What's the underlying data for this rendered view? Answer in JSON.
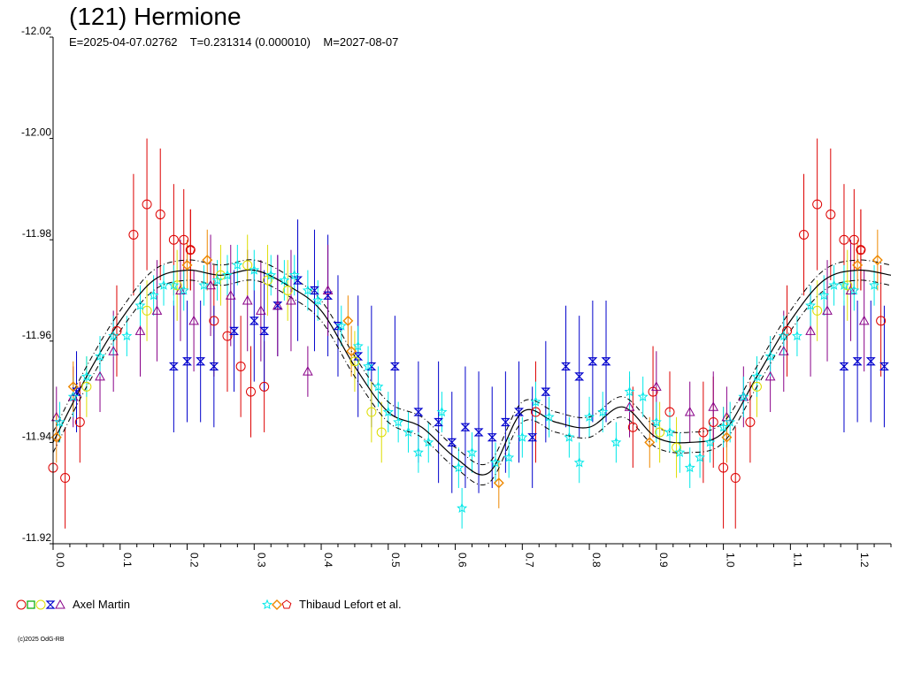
{
  "chart_data": {
    "type": "scatter",
    "title": "(121) Hermione",
    "subtitle": "E=2025-04-07.02762    T=0.231314 (0.000010)    M=2027-08-07",
    "xlabel": "",
    "ylabel": "",
    "xlim": [
      0.0,
      1.25
    ],
    "ylim": [
      -12.02,
      -11.92
    ],
    "y_inverted": true,
    "y_ticks": [
      "-12.02",
      "-12.00",
      "-11.98",
      "-11.96",
      "-11.94",
      "-11.92"
    ],
    "y_tick_values": [
      -12.02,
      -12.0,
      -11.98,
      -11.96,
      -11.94,
      -11.92
    ],
    "x_ticks": [
      "0.0",
      "0.1",
      "0.2",
      "0.3",
      "0.4",
      "0.5",
      "0.6",
      "0.7",
      "0.8",
      "0.9",
      "1.0",
      "1.1",
      "1.2"
    ],
    "x_tick_values": [
      0.0,
      0.1,
      0.2,
      0.3,
      0.4,
      0.5,
      0.6,
      0.7,
      0.8,
      0.9,
      1.0,
      1.1,
      1.2
    ],
    "grid": false,
    "legend_placement": "bottom",
    "fit_curve": {
      "phase": [
        0.0,
        0.05,
        0.1,
        0.15,
        0.2,
        0.25,
        0.3,
        0.35,
        0.4,
        0.45,
        0.5,
        0.55,
        0.6,
        0.65,
        0.7,
        0.75,
        0.8,
        0.85,
        0.9,
        0.95,
        1.0,
        1.05,
        1.1,
        1.15,
        1.2,
        1.25
      ],
      "mag": [
        -11.94,
        -11.953,
        -11.964,
        -11.972,
        -11.974,
        -11.973,
        -11.974,
        -11.971,
        -11.966,
        -11.955,
        -11.946,
        -11.943,
        -11.937,
        -11.934,
        -11.946,
        -11.944,
        -11.943,
        -11.947,
        -11.941,
        -11.94,
        -11.942,
        -11.953,
        -11.964,
        -11.972,
        -11.974,
        -11.973
      ],
      "envelope_offset": 0.002
    },
    "series": [
      {
        "name": "Axel Martin",
        "color": "#dd0000",
        "marker": "circle",
        "points": [
          [
            0.0,
            -11.935,
            0.012
          ],
          [
            0.018,
            -11.933,
            0.01
          ],
          [
            0.04,
            -11.944,
            0.008
          ],
          [
            0.095,
            -11.962,
            0.009
          ],
          [
            0.12,
            -11.981,
            0.012
          ],
          [
            0.14,
            -11.987,
            0.013
          ],
          [
            0.16,
            -11.985,
            0.013
          ],
          [
            0.18,
            -11.98,
            0.011
          ],
          [
            0.195,
            -11.98,
            0.01
          ],
          [
            0.205,
            -11.978,
            0.008
          ],
          [
            0.24,
            -11.964,
            0.011
          ],
          [
            0.26,
            -11.961,
            0.011
          ],
          [
            0.28,
            -11.955,
            0.01
          ],
          [
            0.295,
            -11.95,
            0.009
          ],
          [
            0.315,
            -11.951,
            0.009
          ],
          [
            0.72,
            -11.946,
            0.01
          ],
          [
            0.865,
            -11.943,
            0.008
          ],
          [
            0.895,
            -11.95,
            0.009
          ],
          [
            0.92,
            -11.946,
            0.008
          ],
          [
            0.97,
            -11.942,
            0.01
          ],
          [
            0.985,
            -11.944,
            0.009
          ],
          [
            1.0,
            -11.935,
            0.012
          ],
          [
            1.018,
            -11.933,
            0.01
          ],
          [
            1.04,
            -11.944,
            0.008
          ],
          [
            1.095,
            -11.962,
            0.009
          ],
          [
            1.12,
            -11.981,
            0.012
          ],
          [
            1.14,
            -11.987,
            0.013
          ],
          [
            1.16,
            -11.985,
            0.013
          ],
          [
            1.18,
            -11.98,
            0.011
          ],
          [
            1.195,
            -11.98,
            0.01
          ],
          [
            1.205,
            -11.978,
            0.008
          ],
          [
            1.235,
            -11.964,
            0.011
          ]
        ]
      },
      {
        "name": "Axel Martin",
        "color": "#0000cc",
        "marker": "hourglass",
        "points": [
          [
            0.035,
            -11.95,
            0.008
          ],
          [
            0.18,
            -11.955,
            0.013
          ],
          [
            0.2,
            -11.956,
            0.012
          ],
          [
            0.22,
            -11.956,
            0.012
          ],
          [
            0.24,
            -11.955,
            0.012
          ],
          [
            0.27,
            -11.962,
            0.012
          ],
          [
            0.3,
            -11.964,
            0.012
          ],
          [
            0.315,
            -11.962,
            0.012
          ],
          [
            0.335,
            -11.967,
            0.01
          ],
          [
            0.365,
            -11.972,
            0.012
          ],
          [
            0.39,
            -11.97,
            0.012
          ],
          [
            0.41,
            -11.969,
            0.012
          ],
          [
            0.425,
            -11.963,
            0.01
          ],
          [
            0.455,
            -11.957,
            0.012
          ],
          [
            0.475,
            -11.955,
            0.012
          ],
          [
            0.51,
            -11.955,
            0.01
          ],
          [
            0.545,
            -11.946,
            0.01
          ],
          [
            0.575,
            -11.944,
            0.012
          ],
          [
            0.595,
            -11.94,
            0.01
          ],
          [
            0.615,
            -11.943,
            0.012
          ],
          [
            0.635,
            -11.942,
            0.012
          ],
          [
            0.655,
            -11.941,
            0.01
          ],
          [
            0.675,
            -11.944,
            0.01
          ],
          [
            0.695,
            -11.946,
            0.01
          ],
          [
            0.715,
            -11.941,
            0.01
          ],
          [
            0.735,
            -11.95,
            0.01
          ],
          [
            0.765,
            -11.955,
            0.012
          ],
          [
            0.785,
            -11.953,
            0.012
          ],
          [
            0.805,
            -11.956,
            0.012
          ],
          [
            0.825,
            -11.956,
            0.012
          ],
          [
            1.18,
            -11.955,
            0.013
          ],
          [
            1.2,
            -11.956,
            0.012
          ],
          [
            1.22,
            -11.956,
            0.012
          ],
          [
            1.24,
            -11.955,
            0.012
          ]
        ]
      },
      {
        "name": "Axel Martin",
        "color": "#880088",
        "marker": "triangle",
        "points": [
          [
            0.005,
            -11.945,
            0.006
          ],
          [
            0.03,
            -11.949,
            0.006
          ],
          [
            0.07,
            -11.953,
            0.007
          ],
          [
            0.09,
            -11.958,
            0.008
          ],
          [
            0.13,
            -11.962,
            0.009
          ],
          [
            0.155,
            -11.966,
            0.01
          ],
          [
            0.19,
            -11.97,
            0.01
          ],
          [
            0.21,
            -11.964,
            0.01
          ],
          [
            0.235,
            -11.971,
            0.01
          ],
          [
            0.265,
            -11.969,
            0.01
          ],
          [
            0.29,
            -11.968,
            0.01
          ],
          [
            0.31,
            -11.966,
            0.01
          ],
          [
            0.335,
            -11.967,
            0.01
          ],
          [
            0.355,
            -11.968,
            0.01
          ],
          [
            0.38,
            -11.954,
            0.005
          ],
          [
            0.41,
            -11.97,
            0.009
          ],
          [
            0.86,
            -11.947,
            0.006
          ],
          [
            0.9,
            -11.951,
            0.007
          ],
          [
            0.95,
            -11.946,
            0.006
          ],
          [
            0.985,
            -11.947,
            0.007
          ],
          [
            1.005,
            -11.945,
            0.006
          ],
          [
            1.03,
            -11.949,
            0.006
          ],
          [
            1.07,
            -11.953,
            0.007
          ],
          [
            1.09,
            -11.958,
            0.008
          ],
          [
            1.13,
            -11.962,
            0.009
          ],
          [
            1.155,
            -11.966,
            0.01
          ],
          [
            1.19,
            -11.97,
            0.01
          ],
          [
            1.21,
            -11.964,
            0.01
          ]
        ]
      },
      {
        "name": "Axel Martin",
        "color": "#dddd00",
        "marker": "circle",
        "points": [
          [
            0.05,
            -11.951,
            0.006
          ],
          [
            0.14,
            -11.966,
            0.006
          ],
          [
            0.185,
            -11.971,
            0.007
          ],
          [
            0.25,
            -11.973,
            0.006
          ],
          [
            0.29,
            -11.975,
            0.006
          ],
          [
            0.32,
            -11.972,
            0.007
          ],
          [
            0.35,
            -11.97,
            0.006
          ],
          [
            0.45,
            -11.956,
            0.006
          ],
          [
            0.475,
            -11.946,
            0.006
          ],
          [
            0.49,
            -11.942,
            0.006
          ],
          [
            0.905,
            -11.942,
            0.006
          ],
          [
            0.93,
            -11.939,
            0.006
          ],
          [
            1.05,
            -11.951,
            0.006
          ],
          [
            1.14,
            -11.966,
            0.006
          ],
          [
            1.185,
            -11.971,
            0.007
          ]
        ]
      },
      {
        "name": "Axel Martin",
        "color": "#00aa00",
        "marker": "square",
        "points": []
      },
      {
        "name": "Thibaud Lefort et al.",
        "color": "#00e8e8",
        "marker": "star",
        "points": [
          [
            0.01,
            -11.944,
            0.004
          ],
          [
            0.03,
            -11.949,
            0.004
          ],
          [
            0.05,
            -11.953,
            0.004
          ],
          [
            0.07,
            -11.957,
            0.004
          ],
          [
            0.09,
            -11.961,
            0.004
          ],
          [
            0.11,
            -11.961,
            0.004
          ],
          [
            0.13,
            -11.967,
            0.004
          ],
          [
            0.15,
            -11.969,
            0.004
          ],
          [
            0.165,
            -11.971,
            0.004
          ],
          [
            0.18,
            -11.971,
            0.004
          ],
          [
            0.195,
            -11.97,
            0.004
          ],
          [
            0.225,
            -11.971,
            0.004
          ],
          [
            0.245,
            -11.972,
            0.004
          ],
          [
            0.26,
            -11.973,
            0.004
          ],
          [
            0.275,
            -11.975,
            0.004
          ],
          [
            0.3,
            -11.974,
            0.004
          ],
          [
            0.325,
            -11.973,
            0.004
          ],
          [
            0.345,
            -11.972,
            0.004
          ],
          [
            0.36,
            -11.973,
            0.004
          ],
          [
            0.38,
            -11.97,
            0.004
          ],
          [
            0.395,
            -11.968,
            0.004
          ],
          [
            0.43,
            -11.963,
            0.004
          ],
          [
            0.455,
            -11.959,
            0.004
          ],
          [
            0.47,
            -11.955,
            0.004
          ],
          [
            0.485,
            -11.951,
            0.004
          ],
          [
            0.5,
            -11.946,
            0.004
          ],
          [
            0.515,
            -11.944,
            0.004
          ],
          [
            0.53,
            -11.942,
            0.004
          ],
          [
            0.545,
            -11.938,
            0.004
          ],
          [
            0.56,
            -11.94,
            0.004
          ],
          [
            0.58,
            -11.946,
            0.004
          ],
          [
            0.605,
            -11.935,
            0.004
          ],
          [
            0.61,
            -11.927,
            0.004
          ],
          [
            0.625,
            -11.938,
            0.004
          ],
          [
            0.66,
            -11.936,
            0.004
          ],
          [
            0.68,
            -11.937,
            0.004
          ],
          [
            0.7,
            -11.941,
            0.004
          ],
          [
            0.72,
            -11.948,
            0.004
          ],
          [
            0.74,
            -11.945,
            0.004
          ],
          [
            0.77,
            -11.941,
            0.004
          ],
          [
            0.785,
            -11.936,
            0.004
          ],
          [
            0.8,
            -11.945,
            0.004
          ],
          [
            0.82,
            -11.946,
            0.004
          ],
          [
            0.84,
            -11.94,
            0.004
          ],
          [
            0.86,
            -11.95,
            0.004
          ],
          [
            0.88,
            -11.949,
            0.004
          ],
          [
            0.9,
            -11.944,
            0.004
          ],
          [
            0.92,
            -11.942,
            0.004
          ],
          [
            0.935,
            -11.938,
            0.004
          ],
          [
            0.95,
            -11.935,
            0.004
          ],
          [
            0.965,
            -11.937,
            0.004
          ],
          [
            0.98,
            -11.94,
            0.004
          ],
          [
            1.0,
            -11.943,
            0.004
          ],
          [
            1.01,
            -11.944,
            0.004
          ],
          [
            1.03,
            -11.949,
            0.004
          ],
          [
            1.05,
            -11.953,
            0.004
          ],
          [
            1.07,
            -11.957,
            0.004
          ],
          [
            1.09,
            -11.961,
            0.004
          ],
          [
            1.11,
            -11.961,
            0.004
          ],
          [
            1.13,
            -11.967,
            0.004
          ],
          [
            1.15,
            -11.969,
            0.004
          ],
          [
            1.165,
            -11.971,
            0.004
          ],
          [
            1.18,
            -11.971,
            0.004
          ],
          [
            1.195,
            -11.97,
            0.004
          ],
          [
            1.225,
            -11.971,
            0.004
          ]
        ]
      },
      {
        "name": "Thibaud Lefort et al.",
        "color": "#ee8800",
        "marker": "diamond",
        "points": [
          [
            0.005,
            -11.941,
            0.005
          ],
          [
            0.03,
            -11.951,
            0.005
          ],
          [
            0.2,
            -11.975,
            0.005
          ],
          [
            0.23,
            -11.976,
            0.006
          ],
          [
            0.44,
            -11.964,
            0.005
          ],
          [
            0.445,
            -11.958,
            0.005
          ],
          [
            0.665,
            -11.932,
            0.005
          ],
          [
            0.89,
            -11.94,
            0.005
          ],
          [
            1.005,
            -11.941,
            0.005
          ],
          [
            1.2,
            -11.975,
            0.005
          ],
          [
            1.23,
            -11.976,
            0.006
          ]
        ]
      },
      {
        "name": "Thibaud Lefort et al.",
        "color": "#dd0000",
        "marker": "pentagon",
        "points": [
          [
            0.205,
            -11.978,
            0.008
          ],
          [
            1.205,
            -11.978,
            0.008
          ]
        ]
      }
    ]
  },
  "legend": [
    {
      "label": "Axel Martin",
      "markers": [
        {
          "marker": "circle",
          "color": "#dd0000"
        },
        {
          "marker": "square",
          "color": "#00aa00"
        },
        {
          "marker": "circle",
          "color": "#dddd00"
        },
        {
          "marker": "hourglass",
          "color": "#0000cc"
        },
        {
          "marker": "triangle",
          "color": "#880088"
        }
      ]
    },
    {
      "label": "Thibaud Lefort et al.",
      "markers": [
        {
          "marker": "star",
          "color": "#00e8e8"
        },
        {
          "marker": "diamond",
          "color": "#ee8800"
        },
        {
          "marker": "pentagon",
          "color": "#dd0000"
        }
      ]
    }
  ],
  "copyright": "(c)2025 OdG-RB"
}
